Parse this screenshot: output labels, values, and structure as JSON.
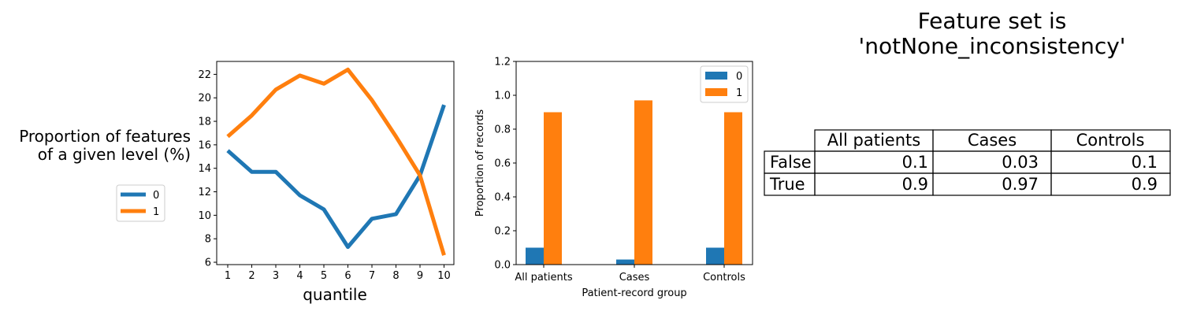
{
  "chart_data": [
    {
      "type": "line",
      "xlabel": "quantile",
      "ylabel": [
        "Proportion of features",
        "of a given level (%)"
      ],
      "x": [
        1,
        2,
        3,
        4,
        5,
        6,
        7,
        8,
        9,
        10
      ],
      "ylim": [
        5.8,
        23.1
      ],
      "yticks": [
        6,
        8,
        10,
        12,
        14,
        16,
        18,
        20,
        22
      ],
      "series": [
        {
          "name": "0",
          "color": "#1f77b4",
          "values": [
            15.5,
            13.7,
            13.7,
            11.7,
            10.5,
            7.3,
            9.7,
            10.1,
            13.4,
            19.4
          ]
        },
        {
          "name": "1",
          "color": "#ff7f0e",
          "values": [
            16.7,
            18.5,
            20.7,
            21.9,
            21.2,
            22.4,
            19.8,
            16.7,
            13.4,
            6.6
          ]
        }
      ],
      "legend": {
        "placement": "left"
      }
    },
    {
      "type": "bar",
      "xlabel": "Patient-record group",
      "ylabel": "Proportion of records",
      "categories": [
        "All patients",
        "Cases",
        "Controls"
      ],
      "ylim": [
        0,
        1.2
      ],
      "yticks": [
        "0.0",
        "0.2",
        "0.4",
        "0.6",
        "0.8",
        "1.0",
        "1.2"
      ],
      "series": [
        {
          "name": "0",
          "color": "#1f77b4",
          "values": [
            0.1,
            0.03,
            0.1
          ]
        },
        {
          "name": "1",
          "color": "#ff7f0e",
          "values": [
            0.9,
            0.97,
            0.9
          ]
        }
      ],
      "legend": {
        "placement": "top-right"
      }
    },
    {
      "type": "table",
      "title": [
        "Feature set is",
        "'notNone_inconsistency'"
      ],
      "columns": [
        "All patients",
        "Cases",
        "Controls"
      ],
      "rows": [
        {
          "label": "False",
          "values": [
            "0.1",
            "0.03",
            "0.1"
          ]
        },
        {
          "label": "True",
          "values": [
            "0.9",
            "0.97",
            "0.9"
          ]
        }
      ]
    }
  ]
}
